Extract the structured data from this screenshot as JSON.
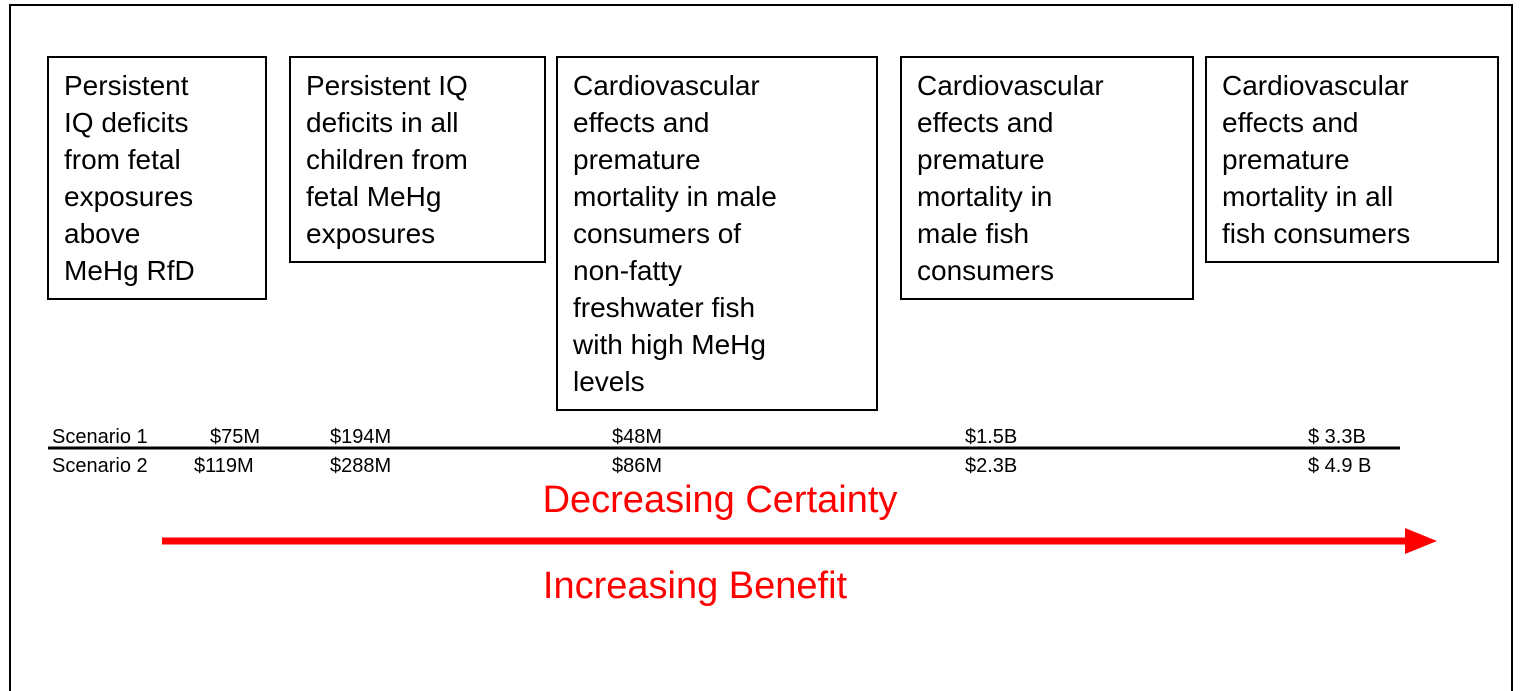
{
  "boxes": [
    {
      "lines": [
        "Persistent",
        "IQ deficits",
        "from fetal",
        "exposures",
        "above",
        "MeHg RfD"
      ]
    },
    {
      "lines": [
        "Persistent IQ",
        "deficits in all",
        "children from",
        "fetal MeHg",
        "exposures"
      ]
    },
    {
      "lines": [
        "Cardiovascular",
        "effects and",
        "premature",
        "mortality in male",
        "consumers of",
        "non-fatty",
        "freshwater fish",
        "with high MeHg",
        "levels"
      ]
    },
    {
      "lines": [
        "Cardiovascular",
        "effects and",
        "premature",
        "mortality in",
        "male fish",
        "consumers"
      ]
    },
    {
      "lines": [
        "Cardiovascular",
        "effects and",
        "premature",
        "mortality in all",
        "fish consumers"
      ]
    }
  ],
  "scenarios": [
    {
      "label": "Scenario 1",
      "values": [
        "$75M",
        "$194M",
        "$48M",
        "$1.5B",
        "$ 3.3B"
      ]
    },
    {
      "label": "Scenario 2",
      "values": [
        "$119M",
        "$288M",
        "$86M",
        "$2.3B",
        "$ 4.9 B"
      ]
    }
  ],
  "certainty": "Decreasing Certainty",
  "benefit": "Increasing Benefit"
}
